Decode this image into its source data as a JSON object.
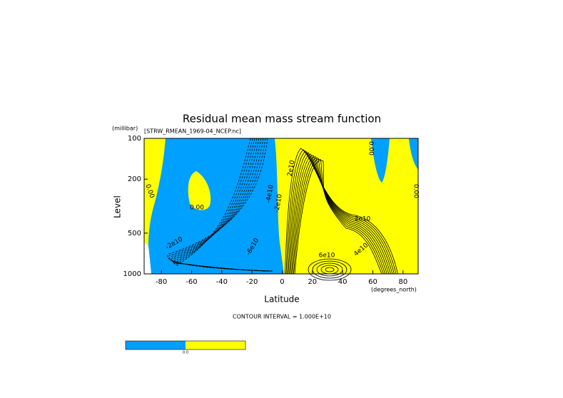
{
  "chart_data": {
    "type": "contour",
    "title": "Residual mean mass stream function",
    "subtitle": "[STRW_RMEAN_1969-04_NCEP.nc]",
    "y_unit": "(millibar)",
    "y_label": "Level",
    "x_label": "Latitude",
    "x_unit": "(degrees_north)",
    "footnote": "CONTOUR INTERVAL = 1.000E+10",
    "xlim": [
      -91.4,
      90
    ],
    "xticks": [
      -80,
      -60,
      -40,
      -20,
      0,
      20,
      40,
      60,
      80
    ],
    "ylim": [
      1000,
      100
    ],
    "yticks": [
      100,
      200,
      500,
      1000
    ],
    "log_y": true,
    "fill_colors": [
      "#00a0ff",
      "#ffff00"
    ],
    "colorbar_labels": [
      "0.0"
    ],
    "annotations": [
      "0.00",
      "0.00",
      "0.00",
      "0.00",
      "-2e10",
      "-6e10",
      "-4e10",
      "-2e10",
      "2e10",
      "2e10",
      "4e10",
      "6e10"
    ]
  }
}
